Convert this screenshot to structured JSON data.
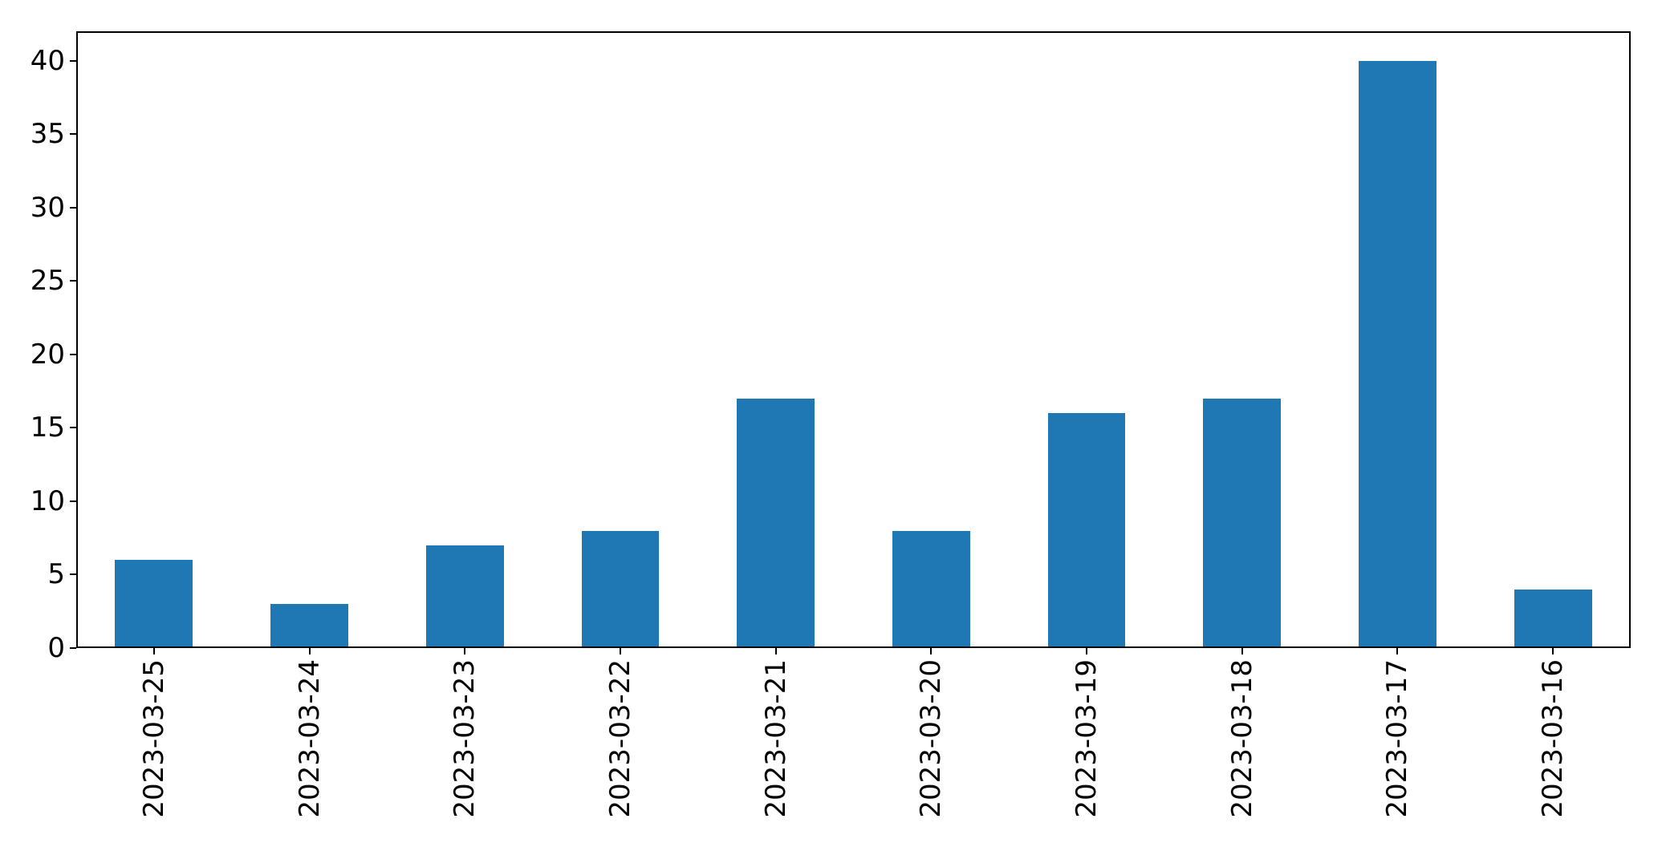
{
  "chart_data": {
    "type": "bar",
    "title": "",
    "xlabel": "",
    "ylabel": "",
    "categories": [
      "2023-03-25",
      "2023-03-24",
      "2023-03-23",
      "2023-03-22",
      "2023-03-21",
      "2023-03-20",
      "2023-03-19",
      "2023-03-18",
      "2023-03-17",
      "2023-03-16"
    ],
    "values": [
      6,
      3,
      7,
      8,
      17,
      8,
      16,
      17,
      40,
      4
    ],
    "yticks": [
      0,
      5,
      10,
      15,
      20,
      25,
      30,
      35,
      40
    ],
    "ylim": [
      0,
      42
    ],
    "x_tick_rotation": 90,
    "bar_color": "#1f77b4",
    "axis_color": "#000000",
    "background_color": "#ffffff",
    "grid": false,
    "legend": false,
    "bar_width_fraction": 0.5
  }
}
